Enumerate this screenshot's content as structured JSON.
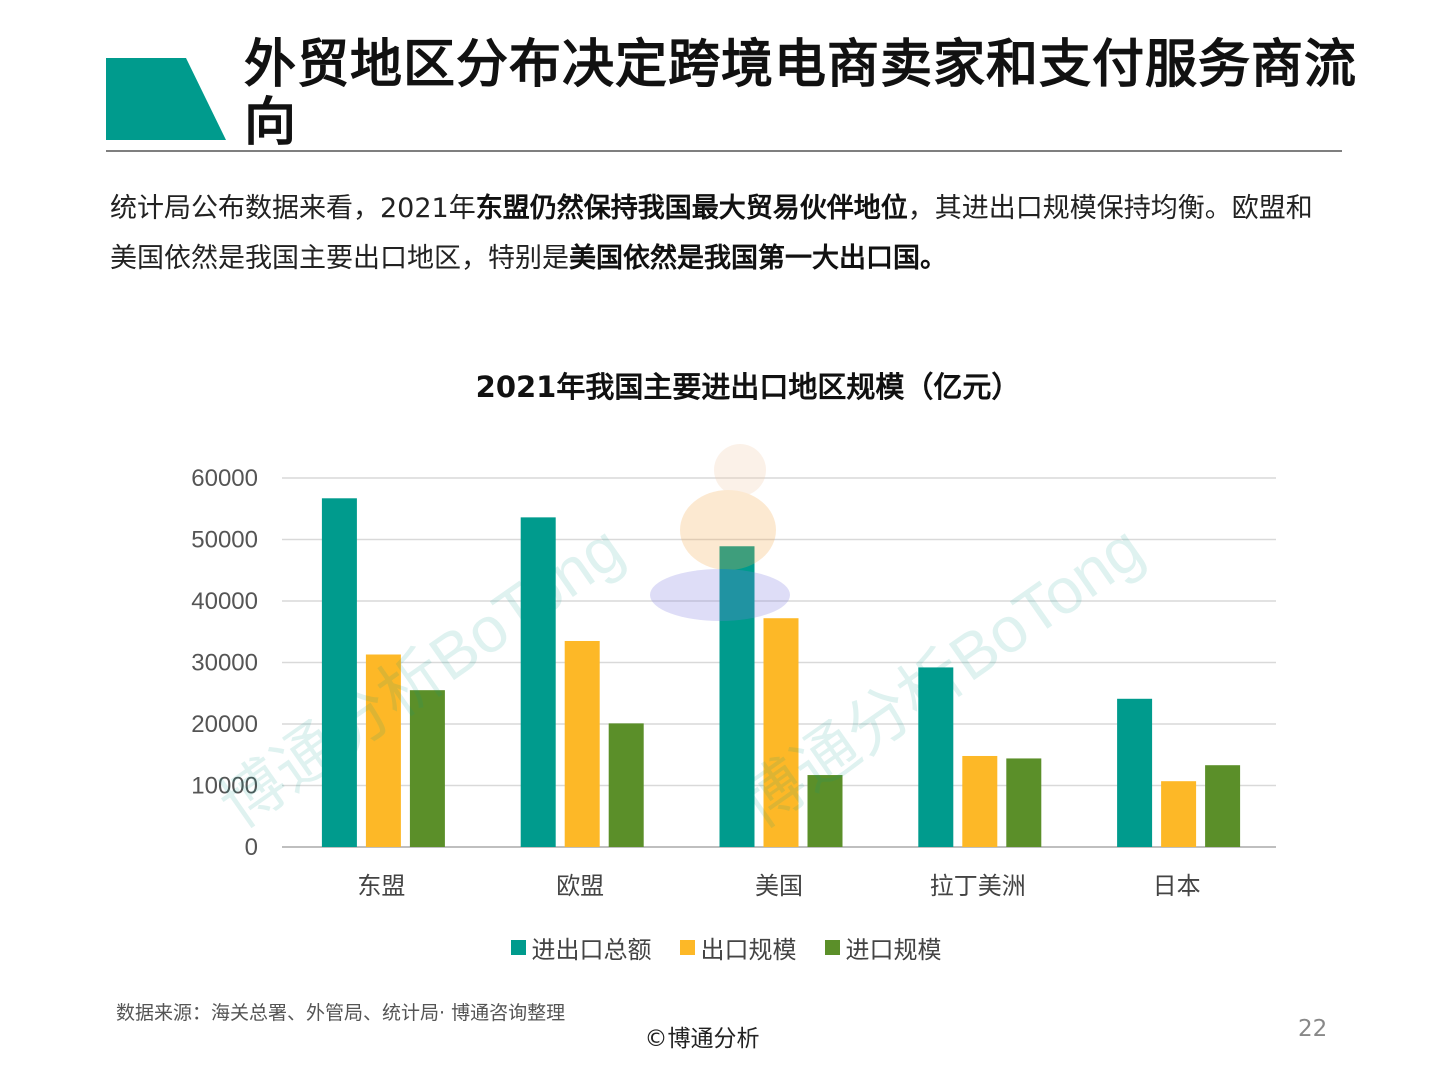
{
  "header": {
    "title": "外贸地区分布决定跨境电商卖家和支付服务商流向"
  },
  "intro": {
    "p1": "统计局公布数据来看，2021年",
    "b1": "东盟仍然保持我国最大贸易伙伴地位",
    "p2": "，其进出口规模保持均衡。欧盟和美国依然是我国主要出口地区，特别是",
    "b2": "美国依然是我国第一大出口国。"
  },
  "watermark": {
    "text": "博通分析BoTong"
  },
  "colors": {
    "accent": "#009B8D",
    "teal": "#009B8D",
    "orange": "#FDB827",
    "green": "#5B8F29"
  },
  "chart_data": {
    "type": "bar",
    "title": "2021年我国主要进出口地区规模（亿元）",
    "categories": [
      "东盟",
      "欧盟",
      "美国",
      "拉丁美洲",
      "日本"
    ],
    "series": [
      {
        "name": "进出口总额",
        "color": "#009B8D",
        "values": [
          56700,
          53600,
          48900,
          29200,
          24100
        ]
      },
      {
        "name": "出口规模",
        "color": "#FDB827",
        "values": [
          31300,
          33500,
          37200,
          14800,
          10700
        ]
      },
      {
        "name": "进口规模",
        "color": "#5B8F29",
        "values": [
          25500,
          20100,
          11700,
          14400,
          13300
        ]
      }
    ],
    "yticks": [
      0,
      10000,
      20000,
      30000,
      40000,
      50000,
      60000
    ],
    "ylim": [
      0,
      60000
    ],
    "grid": true,
    "legend": "bottom"
  },
  "footer": {
    "source": "数据来源：海关总署、外管局、统计局· 博通咨询整理",
    "copyright": "©博通分析",
    "page": "22"
  }
}
